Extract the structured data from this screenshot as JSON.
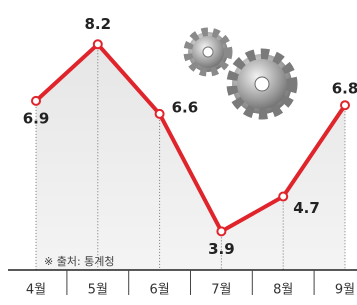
{
  "chart_data": {
    "type": "line",
    "categories": [
      "4월",
      "5월",
      "6월",
      "7월",
      "8월",
      "9월"
    ],
    "values": [
      6.9,
      8.2,
      6.6,
      3.9,
      4.7,
      6.8
    ],
    "color": "#e0242b",
    "note": "※ 출처: 통계청"
  }
}
